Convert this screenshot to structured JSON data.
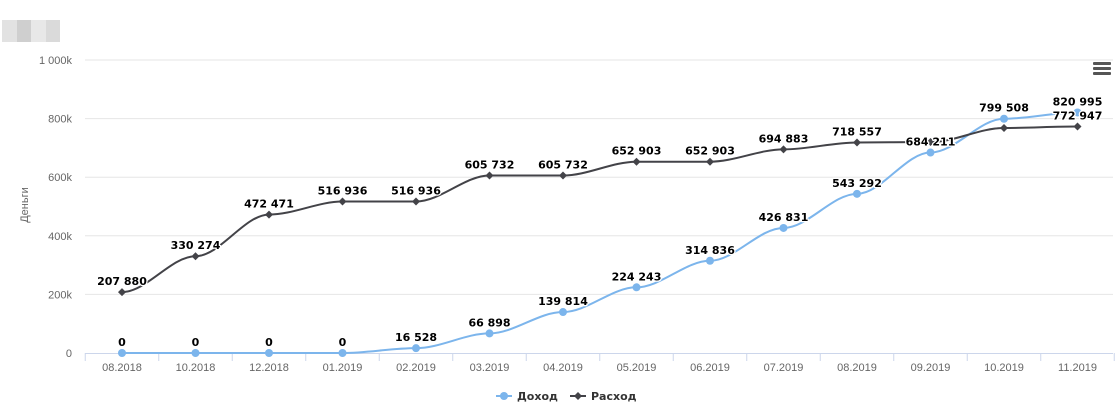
{
  "menu_icon": "hamburger-icon",
  "chart_data": {
    "type": "line",
    "categories": [
      "08.2018",
      "",
      "10.2018",
      "",
      "12.2018",
      "01.2019",
      "02.2019",
      "03.2019",
      "04.2019",
      "05.2019",
      "06.2019",
      "07.2019",
      "08.2019",
      "09.2019",
      "10.2019",
      "11.2019"
    ],
    "x_ticks": [
      "08.2018",
      "10.2018",
      "12.2018",
      "01.2019",
      "02.2019",
      "03.2019",
      "04.2019",
      "05.2019",
      "06.2019",
      "07.2019",
      "08.2019",
      "09.2019",
      "10.2019",
      "11.2019"
    ],
    "ylabel": "Деньги",
    "ylim": [
      0,
      1000000
    ],
    "y_ticks": [
      "0",
      "200k",
      "400k",
      "600k",
      "800k",
      "1 000k"
    ],
    "grid": true,
    "legend_position": "bottom-center",
    "series": [
      {
        "name": "Доход",
        "color": "#7cb5ec",
        "marker": "circle",
        "x": [
          "08.2018",
          "10.2018",
          "12.2018",
          "01.2019",
          "02.2019",
          "03.2019",
          "04.2019",
          "05.2019",
          "06.2019",
          "07.2019",
          "08.2019",
          "09.2019",
          "10.2019",
          "11.2019"
        ],
        "values": [
          0,
          0,
          0,
          0,
          16528,
          66898,
          139814,
          224243,
          314836,
          426831,
          543292,
          684211,
          799508,
          820995
        ],
        "labels": [
          "0",
          "0",
          "0",
          "0",
          "16 528",
          "66 898",
          "139 814",
          "224 243",
          "314 836",
          "426 831",
          "543 292",
          "684 211",
          "799 508",
          "820 995"
        ]
      },
      {
        "name": "Расход",
        "color": "#434348",
        "marker": "diamond",
        "x": [
          "08.2018",
          "10.2018",
          "12.2018",
          "01.2019",
          "02.2019",
          "03.2019",
          "04.2019",
          "05.2019",
          "06.2019",
          "07.2019",
          "08.2019",
          "09.2019",
          "10.2019",
          "11.2019"
        ],
        "values": [
          207880,
          330274,
          472471,
          516936,
          516936,
          605732,
          605732,
          652903,
          652903,
          694883,
          718557,
          720000,
          768000,
          772947
        ],
        "labels": [
          "207 880",
          "330 274",
          "472 471",
          "516 936",
          "516 936",
          "605 732",
          "605 732",
          "652 903",
          "652 903",
          "694 883",
          "718 557",
          "",
          "",
          "772 947"
        ]
      }
    ]
  }
}
